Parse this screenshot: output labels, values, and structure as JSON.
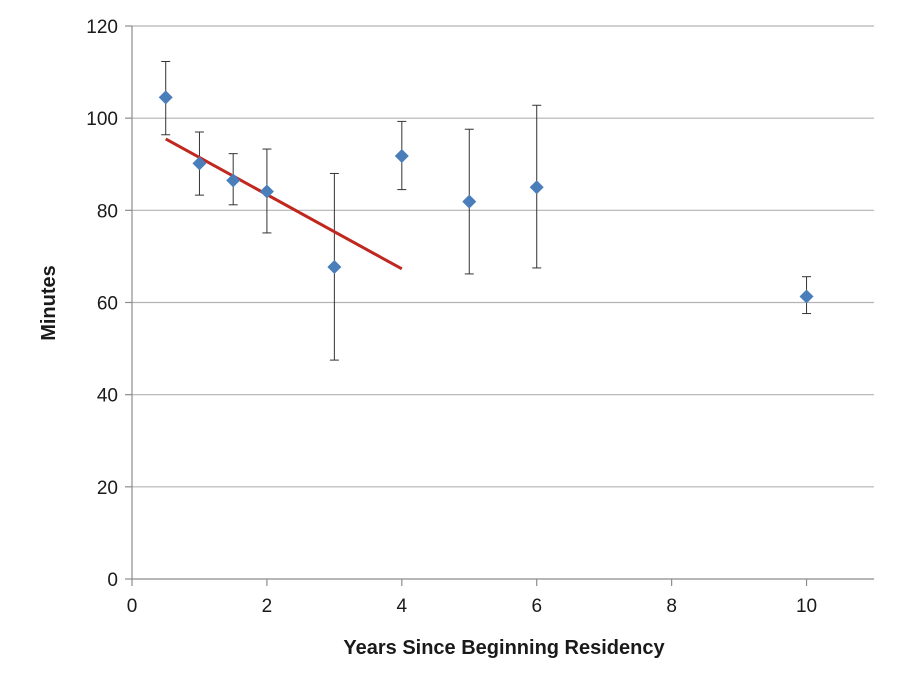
{
  "chart_data": {
    "type": "scatter",
    "title": "",
    "xlabel": "Years Since Beginning Residency",
    "ylabel": "Minutes",
    "xlim": [
      0,
      11
    ],
    "ylim": [
      0,
      120
    ],
    "xticks": [
      0,
      2,
      4,
      6,
      8,
      10
    ],
    "yticks": [
      0,
      20,
      40,
      60,
      80,
      100,
      120
    ],
    "grid": "horizontal",
    "legend": "none",
    "series": [
      {
        "type": "scatter",
        "marker": "diamond",
        "color": "#4a7ebb",
        "x": [
          0.5,
          1,
          1.5,
          2,
          3,
          4,
          5,
          6,
          10
        ],
        "y": [
          104.5,
          90.2,
          86.5,
          84.1,
          67.7,
          91.8,
          81.9,
          85.0,
          61.3
        ],
        "error_low": [
          96.4,
          83.3,
          81.2,
          75.1,
          47.5,
          84.5,
          66.2,
          67.5,
          57.6
        ],
        "error_high": [
          112.3,
          97.0,
          92.3,
          93.3,
          88.0,
          99.3,
          97.6,
          102.8,
          65.6
        ]
      },
      {
        "type": "line",
        "color": "#c0271f",
        "x": [
          0.5,
          4
        ],
        "y": [
          95.5,
          67.3
        ]
      }
    ]
  }
}
